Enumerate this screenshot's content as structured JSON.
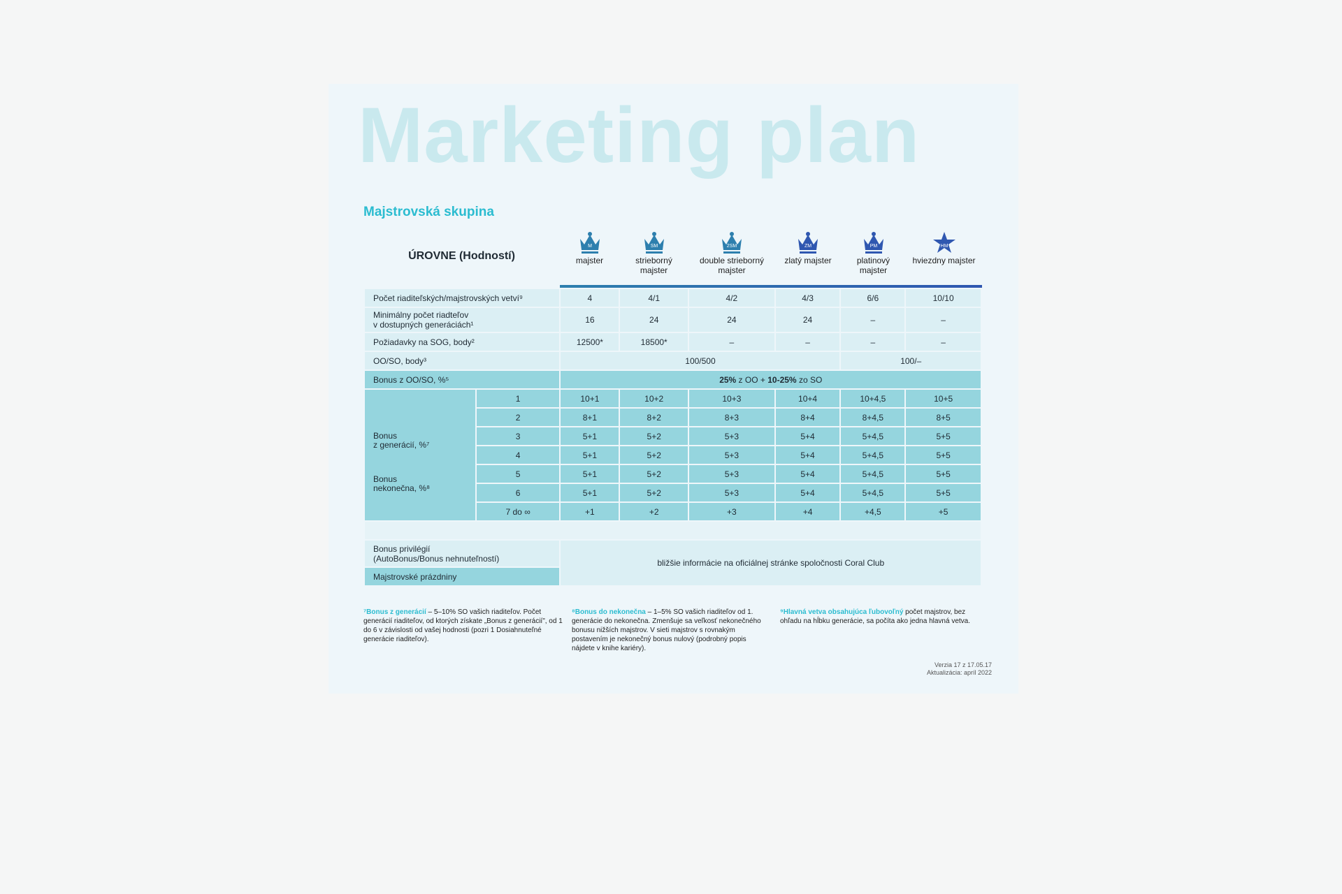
{
  "watermark": "Marketing plan",
  "title": "Majstrovská skupina",
  "levels_header": "ÚROVNE (Hodností)",
  "accent": "#2bbcd0",
  "levels": [
    {
      "badge": "M",
      "name": "majster",
      "icon": "crown-icon"
    },
    {
      "badge": "SM",
      "name": "strieborný majster",
      "icon": "crown-icon"
    },
    {
      "badge": "2SM",
      "name": "double strieborný majster",
      "icon": "crown-icon"
    },
    {
      "badge": "ZM",
      "name": "zlatý majster",
      "icon": "crown-icon"
    },
    {
      "badge": "PM",
      "name": "platinový majster",
      "icon": "crown-icon"
    },
    {
      "badge": "HM",
      "name": "hviezdny majster",
      "icon": "star-icon"
    }
  ],
  "rows": {
    "branches": {
      "label": "Počet riaditeľských/majstrovských vetví⁹",
      "values": [
        "4",
        "4/1",
        "4/2",
        "4/3",
        "6/6",
        "10/10"
      ]
    },
    "min_directors": {
      "label1": "Minimálny počet riadteľov",
      "label2": "v dostupných generáciách¹",
      "values": [
        "16",
        "24",
        "24",
        "24",
        "–",
        "–"
      ]
    },
    "sog": {
      "label": "Požiadavky na SOG, body²",
      "values": [
        "12500*",
        "18500*",
        "–",
        "–",
        "–",
        "–"
      ]
    },
    "ooso": {
      "label": "OO/SO, body³",
      "values": [
        "100/500",
        "100/–"
      ]
    },
    "bonus_ooso": {
      "label": "Bonus z OO/SO, %⁵",
      "b1": "25%",
      "t1": " z OO + ",
      "b2": "10-25%",
      "t2": " zo SO"
    },
    "gen_label1": "Bonus",
    "gen_label2": "z generácií, %⁷",
    "inf_label1": "Bonus",
    "inf_label2": "nekonečna, %⁸",
    "generations": [
      {
        "gen": "1",
        "values": [
          "10+1",
          "10+2",
          "10+3",
          "10+4",
          "10+4,5",
          "10+5"
        ]
      },
      {
        "gen": "2",
        "values": [
          "8+1",
          "8+2",
          "8+3",
          "8+4",
          "8+4,5",
          "8+5"
        ]
      },
      {
        "gen": "3",
        "values": [
          "5+1",
          "5+2",
          "5+3",
          "5+4",
          "5+4,5",
          "5+5"
        ]
      },
      {
        "gen": "4",
        "values": [
          "5+1",
          "5+2",
          "5+3",
          "5+4",
          "5+4,5",
          "5+5"
        ]
      },
      {
        "gen": "5",
        "values": [
          "5+1",
          "5+2",
          "5+3",
          "5+4",
          "5+4,5",
          "5+5"
        ]
      },
      {
        "gen": "6",
        "values": [
          "5+1",
          "5+2",
          "5+3",
          "5+4",
          "5+4,5",
          "5+5"
        ]
      },
      {
        "gen": "7 do ∞",
        "values": [
          "+1",
          "+2",
          "+3",
          "+4",
          "+4,5",
          "+5"
        ]
      }
    ],
    "privileges": {
      "label1": "Bonus privilégií",
      "label2": "(AutoBonus/Bonus nehnuteľností)",
      "value": "bližšie informácie na oficiálnej stránke spoločnosti Coral Club"
    },
    "holidays": {
      "label": "Majstrovské prázdniny"
    }
  },
  "footnotes": [
    {
      "num": "⁷",
      "title": "Bonus z generácií",
      "text": " – 5–10% SO vašich riaditeľov. Počet generácií riaditeľov, od ktorých získate „Bonus z generácií\", od 1 do 6 v závislosti od vašej hodnosti (pozri 1 Dosiahnuteľné generácie riaditeľov)."
    },
    {
      "num": "⁸",
      "title": "Bonus do nekonečna",
      "text": " – 1–5% SO vašich riaditeľov od 1. generácie do nekonečna. Zmenšuje sa veľkosť nekonečného bonusu nižších majstrov. V sieti majstrov s rovnakým postavením je nekonečný bonus nulový (podrobný popis nájdete v knihe kariéry)."
    },
    {
      "num": "⁹",
      "title": "Hlavná vetva obsahujúca ľubovoľný",
      "text": " počet majstrov, bez ohľadu na hĺbku generácie, sa počíta ako jedna hlavná vetva."
    }
  ],
  "version": "Verzia 17 z 17.05.17",
  "updated": "Aktualizácia: apríl 2022"
}
